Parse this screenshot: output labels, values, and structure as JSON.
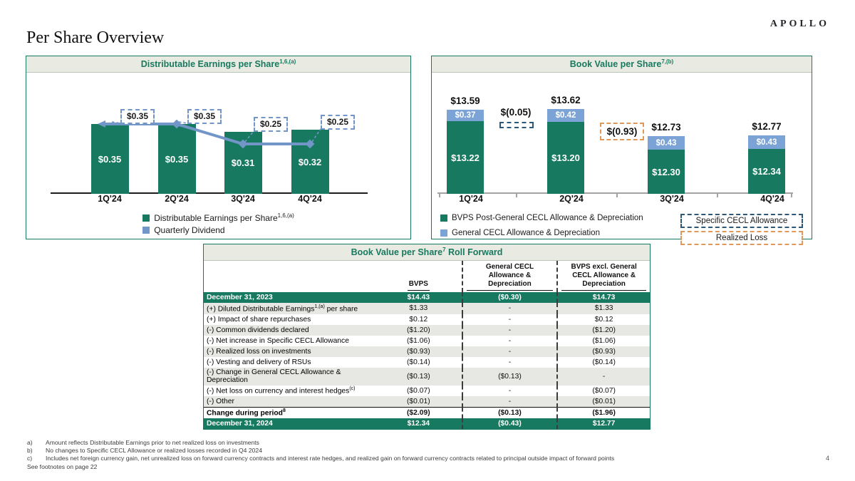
{
  "page": {
    "title": "Per Share Overview",
    "logo": "APOLLO",
    "page_number": "4"
  },
  "colors": {
    "teal": "#17795F",
    "blue": "#7CA3D6",
    "lineblue": "#7396C8",
    "navy": "#2E5878",
    "orange": "#E0995B",
    "headerbg": "#E9EBE3",
    "stripe": "#E7E7E3",
    "axisgray": "#A3A3A3"
  },
  "chart_data": [
    {
      "type": "bar",
      "title": "Distributable Earnings per Share",
      "title_sup": "1,6,(a)",
      "categories": [
        "1Q'24",
        "2Q'24",
        "3Q'24",
        "4Q'24"
      ],
      "ylim": [
        0,
        0.55
      ],
      "grid": false,
      "legend_position": "bottom",
      "series": [
        {
          "name": "Distributable Earnings per Share",
          "sup": "1,6,(a)",
          "type": "bar",
          "values": [
            0.35,
            0.35,
            0.31,
            0.32
          ],
          "labels": [
            "$0.35",
            "$0.35",
            "$0.31",
            "$0.32"
          ],
          "color": "#17795F"
        },
        {
          "name": "Quarterly Dividend",
          "type": "line",
          "values": [
            0.35,
            0.35,
            0.25,
            0.25
          ],
          "labels": [
            "$0.35",
            "$0.35",
            "$0.25",
            "$0.25"
          ],
          "color": "#7396C8"
        }
      ]
    },
    {
      "type": "bar",
      "stacked": true,
      "title": "Book Value per Share",
      "title_sup": "7,(b)",
      "categories": [
        "1Q'24",
        "2Q'24",
        "3Q'24",
        "4Q'24"
      ],
      "baseline": 10.9,
      "grid": false,
      "legend_position": "bottom",
      "series": [
        {
          "name": "BVPS Post-General CECL Allowance & Depreciation",
          "values": [
            13.22,
            13.2,
            12.3,
            12.34
          ],
          "labels": [
            "$13.22",
            "$13.20",
            "$12.30",
            "$12.34"
          ],
          "color": "#17795F"
        },
        {
          "name": "General CECL Allowance & Depreciation",
          "values": [
            0.37,
            0.42,
            0.43,
            0.43
          ],
          "labels": [
            "$0.37",
            "$0.42",
            "$0.43",
            "$0.43"
          ],
          "color": "#7CA3D6"
        }
      ],
      "totals": [
        "$13.59",
        "$13.62",
        "$12.73",
        "$12.77"
      ],
      "callouts": [
        {
          "label": "$(0.05)",
          "style": "specific-cecl",
          "name": "Specific CECL Allowance",
          "between": [
            0,
            1
          ]
        },
        {
          "label": "$(0.93)",
          "style": "realized-loss",
          "name": "Realized Loss",
          "between": [
            1,
            2
          ]
        }
      ],
      "extra_legend": [
        {
          "label": "Specific CECL Allowance",
          "style": "specific-cecl"
        },
        {
          "label": "Realized Loss",
          "style": "realized-loss"
        }
      ]
    },
    {
      "type": "table",
      "title": "Book Value per Share",
      "title_sup": "7",
      "title_post": " Roll Forward",
      "columns": [
        "",
        "BVPS",
        "General CECL Allowance & Depreciation",
        "BVPS excl. General CECL Allowance & Depreciation"
      ],
      "rows": [
        {
          "label": "December 31, 2023",
          "style": "period",
          "values": [
            "$14.43",
            "($0.30)",
            "$14.73"
          ]
        },
        {
          "label": "(+) Diluted Distributable Earnings",
          "sup": "1,(a)",
          "post": " per share",
          "values": [
            "$1.33",
            "-",
            "$1.33"
          ]
        },
        {
          "label": "(+) Impact of share repurchases",
          "values": [
            "$0.12",
            "-",
            "$0.12"
          ]
        },
        {
          "label": "(-) Common dividends declared",
          "values": [
            "($1.20)",
            "-",
            "($1.20)"
          ]
        },
        {
          "label": "(-) Net increase in Specific CECL Allowance",
          "values": [
            "($1.06)",
            "-",
            "($1.06)"
          ]
        },
        {
          "label": "(-) Realized loss on investments",
          "values": [
            "($0.93)",
            "-",
            "($0.93)"
          ]
        },
        {
          "label": "(-) Vesting and delivery of RSUs",
          "values": [
            "($0.14)",
            "-",
            "($0.14)"
          ]
        },
        {
          "label": "(-) Change in General CECL Allowance & Depreciation",
          "values": [
            "($0.13)",
            "($0.13)",
            "-"
          ]
        },
        {
          "label": "(-) Net loss on currency and interest hedges",
          "sup": "(c)",
          "values": [
            "($0.07)",
            "-",
            "($0.07)"
          ]
        },
        {
          "label": "(-) Other",
          "values": [
            "($0.01)",
            "-",
            "($0.01)"
          ]
        },
        {
          "label": "Change during period",
          "sup": "8",
          "style": "total",
          "values": [
            "($2.09)",
            "($0.13)",
            "($1.96)"
          ]
        },
        {
          "label": "December 31, 2024",
          "style": "period",
          "values": [
            "$12.34",
            "($0.43)",
            "$12.77"
          ]
        }
      ]
    }
  ],
  "footnotes": {
    "items": [
      {
        "marker": "a)",
        "text": "Amount reflects Distributable Earnings prior to net realized loss on investments"
      },
      {
        "marker": "b)",
        "text": "No changes to Specific CECL Allowance or realized losses recorded in Q4 2024"
      },
      {
        "marker": "c)",
        "text": "Includes net foreign currency gain, net unrealized loss on forward currency contracts and interest rate hedges, and realized gain on forward currency contracts related to principal outside impact of forward points"
      }
    ],
    "see_note": "See footnotes on page 22"
  }
}
